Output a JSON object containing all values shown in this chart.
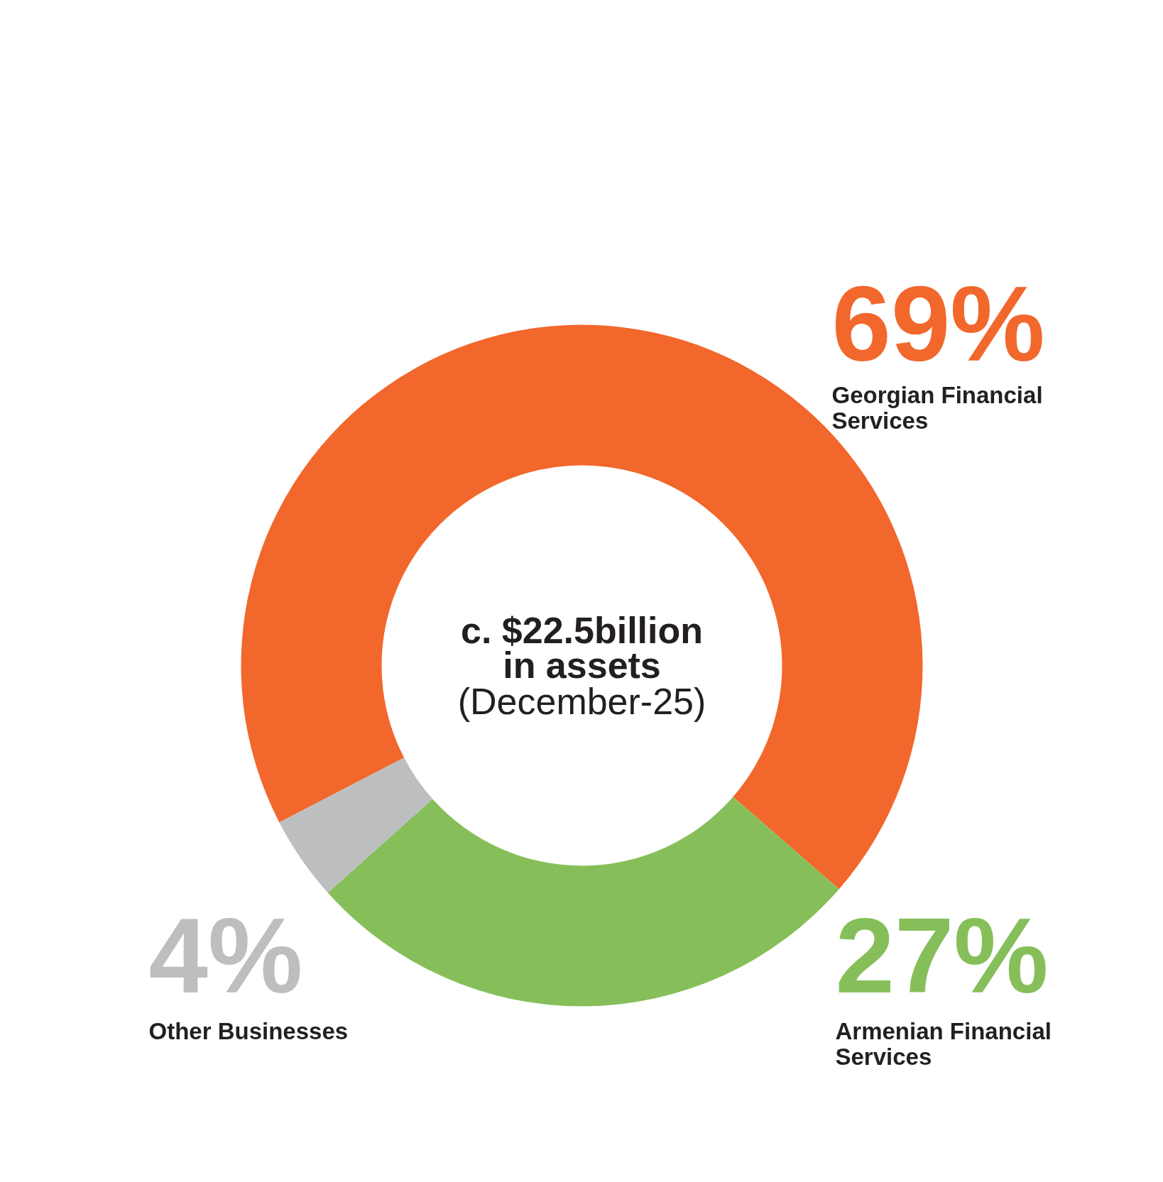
{
  "chart_data": {
    "type": "donut",
    "categories": [
      "Georgian Financial Services",
      "Armenian Financial Services",
      "Other Businesses"
    ],
    "values": [
      69,
      27,
      4
    ],
    "colors": [
      "#f2672c",
      "#86bf5a",
      "#bcbec0"
    ],
    "value_labels": [
      "69%",
      "27%",
      "4%"
    ],
    "annotations": [
      "c. $22.5billion",
      "in assets",
      "(December-25)"
    ]
  }
}
